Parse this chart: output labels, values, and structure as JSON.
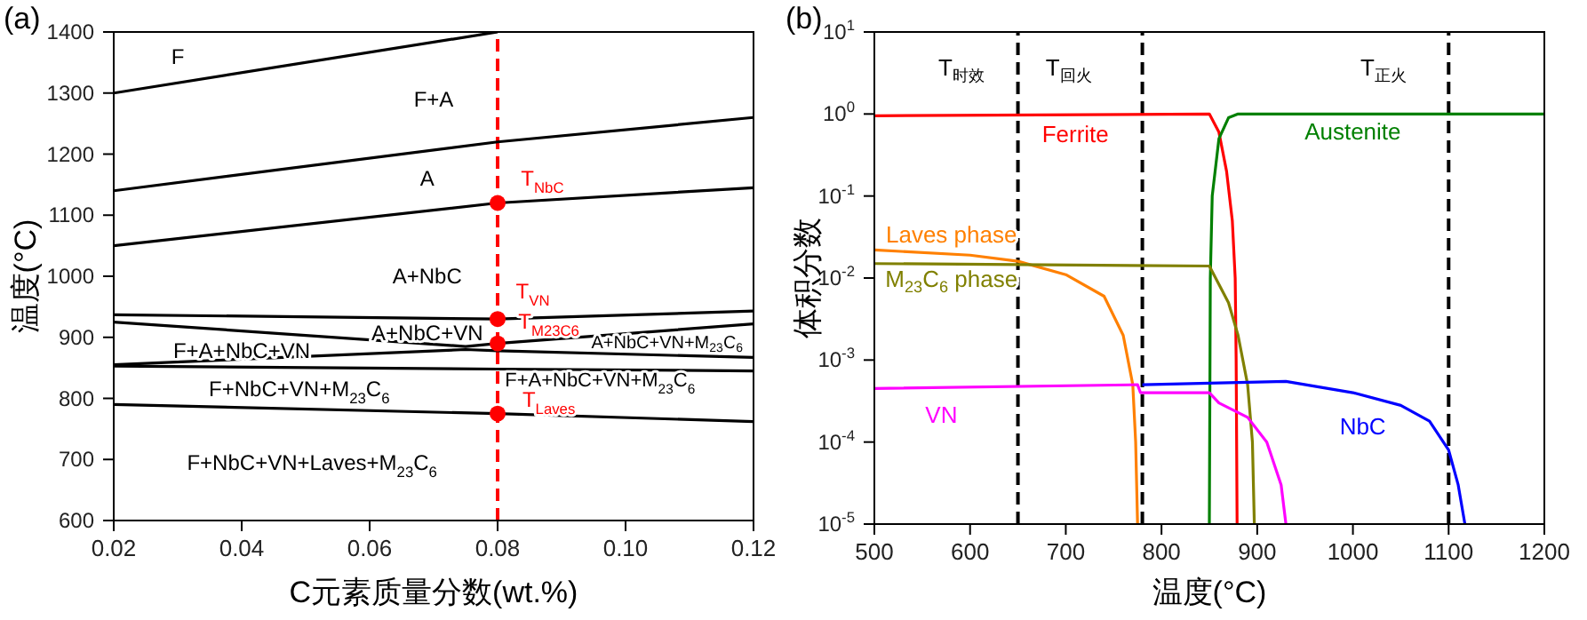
{
  "chart_data": [
    {
      "type": "line",
      "xlabel": "C元素质量分数(wt.%)",
      "ylabel": "温度(°C)",
      "xlim": [
        0.02,
        0.12
      ],
      "xticks": [
        0.02,
        0.04,
        0.06,
        0.08,
        {
          "value": 0.1,
          "label": "0.10"
        },
        0.12
      ],
      "ylim": [
        600,
        1400
      ],
      "yticks": [
        600,
        700,
        800,
        900,
        1000,
        1100,
        1200,
        1300,
        1400
      ],
      "series": [
        {
          "color": "#000000",
          "x": [
            0.02,
            0.08
          ],
          "values": [
            1300,
            1400
          ]
        },
        {
          "color": "#000000",
          "x": [
            0.02,
            0.08,
            0.12
          ],
          "values": [
            1140,
            1220,
            1260
          ]
        },
        {
          "color": "#000000",
          "x": [
            0.02,
            0.08,
            0.12
          ],
          "values": [
            1050,
            1120,
            1145
          ]
        },
        {
          "color": "#000000",
          "x": [
            0.02,
            0.08,
            0.12
          ],
          "values": [
            937,
            930,
            943
          ]
        },
        {
          "color": "#000000",
          "x": [
            0.02,
            0.075,
            0.08,
            0.12
          ],
          "values": [
            925,
            885,
            890,
            922
          ]
        },
        {
          "color": "#000000",
          "x": [
            0.02,
            0.075,
            0.08,
            0.12
          ],
          "values": [
            855,
            880,
            878,
            867
          ]
        },
        {
          "color": "#000000",
          "x": [
            0.02,
            0.08,
            0.12
          ],
          "values": [
            853,
            848,
            845
          ]
        },
        {
          "color": "#000000",
          "x": [
            0.02,
            0.08,
            0.12
          ],
          "values": [
            790,
            775,
            762
          ]
        },
        {
          "type": "scatter",
          "color": "#ff0000",
          "x": [
            0.08,
            0.08,
            0.08,
            0.08
          ],
          "values": [
            1120,
            930,
            890,
            775
          ]
        }
      ],
      "ref_lines": [
        {
          "axis": "x",
          "value": 0.08,
          "color": "#ff0000",
          "line_style": "dashed"
        }
      ],
      "annotations": [
        "(a)",
        "F",
        "F+A",
        "A",
        "A+NbC",
        "A+NbC+VN",
        "F+A+NbC+VN",
        "A+NbC+VN+M$_{23}$C$_{6}$",
        "F+A+NbC+VN+M$_{23}$C$_{6}$",
        "F+NbC+VN+M$_{23}$C$_{6}$",
        "F+NbC+VN+Laves+M$_{23}$C$_{6}$",
        "T$_{NbC}$",
        "T$_{VN}$",
        "T$_{M23C6}$",
        "T$_{Laves}$"
      ]
    },
    {
      "type": "line",
      "xlabel": "温度(°C)",
      "ylabel": "体积分数",
      "log": "y",
      "xlim": [
        500,
        1200
      ],
      "xticks": [
        500,
        600,
        700,
        800,
        900,
        1000,
        1100,
        1200
      ],
      "ylim": [
        1e-05,
        10
      ],
      "yticks": [
        {
          "value": 1e-05,
          "label": "10$^{-5}$"
        },
        {
          "value": 0.0001,
          "label": "10$^{-4}$"
        },
        {
          "value": 0.001,
          "label": "10$^{-3}$"
        },
        {
          "value": 0.01,
          "label": "10$^{-2}$"
        },
        {
          "value": 0.1,
          "label": "10$^{-1}$"
        },
        {
          "value": 1,
          "label": "10$^{0}$"
        },
        {
          "value": 10,
          "label": "10$^{1}$"
        }
      ],
      "series": [
        {
          "name": "Ferrite",
          "color": "#ff0000",
          "x": [
            500,
            850,
            860,
            868,
            874,
            877,
            878,
            879
          ],
          "values": [
            0.95,
            1.0,
            0.6,
            0.2,
            0.05,
            0.01,
            0.001,
            1e-05
          ]
        },
        {
          "name": "Austenite",
          "color": "#008000",
          "x": [
            850,
            851,
            853,
            860,
            870,
            880,
            1200
          ],
          "values": [
            1e-05,
            0.01,
            0.1,
            0.5,
            0.9,
            1.0,
            1.0
          ]
        },
        {
          "name": "Laves phase",
          "color": "#ff8000",
          "x": [
            500,
            600,
            650,
            700,
            740,
            760,
            770,
            773,
            775
          ],
          "values": [
            0.022,
            0.019,
            0.016,
            0.011,
            0.006,
            0.002,
            0.0005,
            0.0001,
            1e-05
          ]
        },
        {
          "name": "M$_{23}$C$_{6}$ phase",
          "color": "#808000",
          "x": [
            500,
            850,
            870,
            880,
            890,
            895,
            897
          ],
          "values": [
            0.015,
            0.014,
            0.005,
            0.002,
            0.0005,
            0.0001,
            1e-05
          ]
        },
        {
          "name": "VN",
          "color": "#ff00ff",
          "x": [
            500,
            775,
            778,
            850,
            860,
            890,
            910,
            925,
            930
          ],
          "values": [
            0.00045,
            0.0005,
            0.0004,
            0.0004,
            0.0003,
            0.0002,
            0.0001,
            3e-05,
            1e-05
          ]
        },
        {
          "name": "NbC",
          "color": "#0000ff",
          "x": [
            780,
            930,
            1000,
            1050,
            1080,
            1100,
            1110,
            1117
          ],
          "values": [
            0.0005,
            0.00055,
            0.0004,
            0.00028,
            0.00018,
            8e-05,
            3e-05,
            1e-05
          ]
        }
      ],
      "ref_lines": [
        {
          "axis": "x",
          "value": 650,
          "color": "#000000",
          "line_style": "dashed"
        },
        {
          "axis": "x",
          "value": 780,
          "color": "#000000",
          "line_style": "dashed"
        },
        {
          "axis": "x",
          "value": 1100,
          "color": "#000000",
          "line_style": "dashed"
        }
      ],
      "annotations": [
        "(b)",
        "T$_{时效}$",
        "T$_{回火}$",
        "T$_{正火}$"
      ]
    }
  ]
}
